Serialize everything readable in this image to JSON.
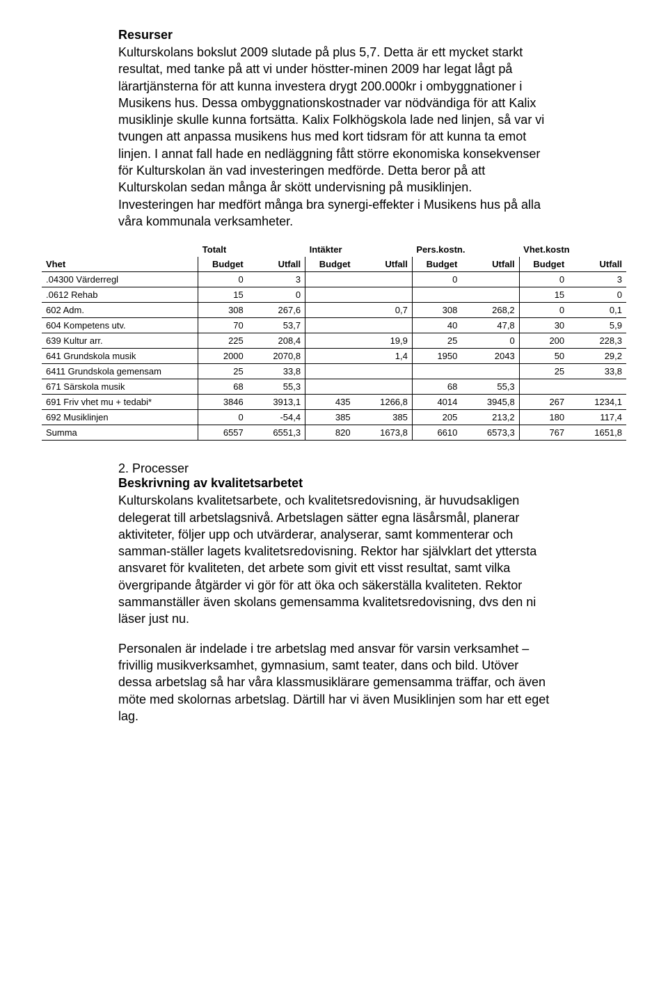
{
  "resources": {
    "heading": "Resurser",
    "paragraph": "Kulturskolans bokslut 2009 slutade på plus 5,7. Detta är ett mycket starkt resultat, med tanke på att vi under höstter-minen 2009 har legat lågt på lärartjänsterna för att kunna investera drygt 200.000kr i ombyggnationer i Musikens hus. Dessa ombyggnationskostnader var nödvändiga för att Kalix musiklinje skulle kunna fortsätta. Kalix Folkhögskola lade ned linjen, så var vi tvungen att anpassa musikens hus med kort tidsram för att kunna ta emot linjen. I annat fall hade en nedläggning fått större ekonomiska konsekvenser för Kulturskolan än vad investeringen medförde. Detta beror på att Kulturskolan sedan många år skött undervisning på musiklinjen. Investeringen har medfört många bra synergi-effekter i Musikens hus på alla våra kommunala verksamheter."
  },
  "table": {
    "group_headers": [
      "Totalt",
      "Intäkter",
      "Pers.kostn.",
      "Vhet.kostn"
    ],
    "row_header": "Vhet",
    "sub_headers": [
      "Budget",
      "Utfall",
      "Budget",
      "Utfall",
      "Budget",
      "Utfall",
      "Budget",
      "Utfall"
    ],
    "rows": [
      {
        "label": ".04300 Värderregl",
        "cells": [
          "0",
          "3",
          "",
          "",
          "0",
          "",
          "0",
          "3"
        ]
      },
      {
        "label": ".0612 Rehab",
        "cells": [
          "15",
          "0",
          "",
          "",
          "",
          "",
          "15",
          "0"
        ]
      },
      {
        "label": "602 Adm.",
        "cells": [
          "308",
          "267,6",
          "",
          "0,7",
          "308",
          "268,2",
          "0",
          "0,1"
        ]
      },
      {
        "label": "604 Kompetens utv.",
        "cells": [
          "70",
          "53,7",
          "",
          "",
          "40",
          "47,8",
          "30",
          "5,9"
        ]
      },
      {
        "label": "639 Kultur arr.",
        "cells": [
          "225",
          "208,4",
          "",
          "19,9",
          "25",
          "0",
          "200",
          "228,3"
        ]
      },
      {
        "label": "641 Grundskola musik",
        "cells": [
          "2000",
          "2070,8",
          "",
          "1,4",
          "1950",
          "2043",
          "50",
          "29,2"
        ]
      },
      {
        "label": "6411 Grundskola gemensam",
        "cells": [
          "25",
          "33,8",
          "",
          "",
          "",
          "",
          "25",
          "33,8"
        ]
      },
      {
        "label": "671 Särskola musik",
        "cells": [
          "68",
          "55,3",
          "",
          "",
          "68",
          "55,3",
          "",
          ""
        ]
      },
      {
        "label": "691 Friv vhet mu + tedabi*",
        "cells": [
          "3846",
          "3913,1",
          "435",
          "1266,8",
          "4014",
          "3945,8",
          "267",
          "1234,1"
        ]
      },
      {
        "label": "692 Musiklinjen",
        "cells": [
          "0",
          "-54,4",
          "385",
          "385",
          "205",
          "213,2",
          "180",
          "117,4"
        ]
      },
      {
        "label": "Summa",
        "cells": [
          "6557",
          "6551,3",
          "820",
          "1673,8",
          "6610",
          "6573,3",
          "767",
          "1651,8"
        ]
      }
    ],
    "col_widths": [
      "190px",
      "60px",
      "70px",
      "60px",
      "70px",
      "60px",
      "70px",
      "60px",
      "70px"
    ]
  },
  "processes": {
    "number": "2. Processer",
    "subtitle": "Beskrivning av kvalitetsarbetet",
    "p1": "Kulturskolans kvalitetsarbete, och kvalitetsredovisning, är huvudsakligen delegerat till arbetslagsnivå. Arbetslagen sätter egna läsårsmål, planerar aktiviteter, följer upp och utvärderar, analyserar, samt kommenterar och samman-ställer lagets kvalitetsredovisning. Rektor har självklart det yttersta ansvaret för kvaliteten, det arbete som givit ett visst resultat, samt vilka övergripande åtgärder vi gör för att öka och säkerställa kvaliteten. Rektor sammanställer även skolans gemensamma kvalitetsredovisning, dvs den ni läser just nu.",
    "p2": "Personalen är indelade i tre arbetslag med ansvar för varsin verksamhet – frivillig musikverksamhet, gymnasium, samt teater, dans och bild. Utöver dessa arbetslag så har våra klassmusiklärare gemensamma träffar, och även möte med skolornas arbetslag. Därtill har vi även Musiklinjen som har ett eget lag."
  }
}
